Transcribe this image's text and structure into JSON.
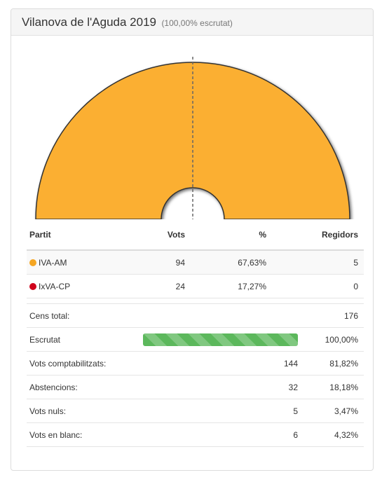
{
  "header": {
    "title": "Vilanova de l'Aguda 2019",
    "subtitle": "(100,00% escrutat)"
  },
  "seats_chart": {
    "color": "#fbaf32",
    "party": "IVA-AM",
    "seats": 5,
    "total_seats": 5
  },
  "results": {
    "headers": {
      "party": "Partit",
      "votes": "Vots",
      "percent": "%",
      "seats": "Regidors"
    },
    "rows": [
      {
        "party": "IVA-AM",
        "color": "#f5a623",
        "votes": "94",
        "percent": "67,63%",
        "seats": "5"
      },
      {
        "party": "IxVA-CP",
        "color": "#d0021b",
        "votes": "24",
        "percent": "17,27%",
        "seats": "0"
      }
    ]
  },
  "stats": {
    "census": {
      "label": "Cens total:",
      "value": "176"
    },
    "scrutiny": {
      "label": "Escrutat",
      "value": "100,00%",
      "progress": 100
    },
    "counted": {
      "label": "Vots comptabilitzats:",
      "votes": "144",
      "percent": "81,82%"
    },
    "abstentions": {
      "label": "Abstencions:",
      "votes": "32",
      "percent": "18,18%"
    },
    "null_votes": {
      "label": "Vots nuls:",
      "votes": "5",
      "percent": "3,47%"
    },
    "blank_votes": {
      "label": "Vots en blanc:",
      "votes": "6",
      "percent": "4,32%"
    }
  }
}
